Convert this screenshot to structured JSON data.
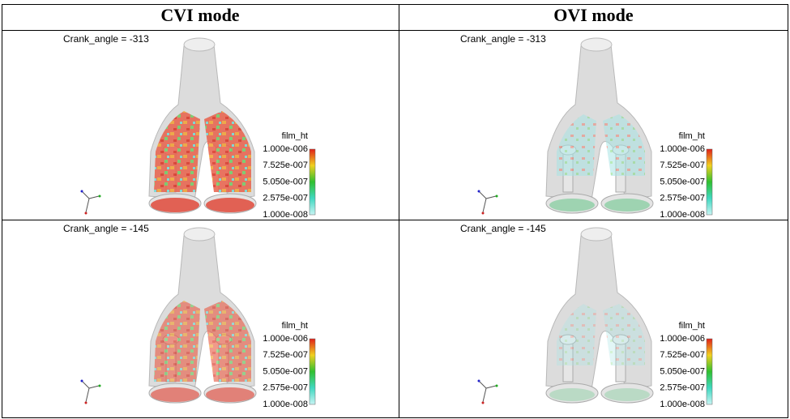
{
  "table": {
    "headers": [
      "CVI mode",
      "OVI mode"
    ],
    "rows": [
      [
        {
          "label": "Crank_angle = -313",
          "legend": {
            "title": "film_ht",
            "ticks": [
              "1.000e-006",
              "7.525e-007",
              "5.050e-007",
              "2.575e-007",
              "1.000e-008"
            ]
          }
        },
        {
          "label": "Crank_angle = -313",
          "legend": {
            "title": "film_ht",
            "ticks": [
              "1.000e-006",
              "7.525e-007",
              "5.050e-007",
              "2.575e-007",
              "1.000e-008"
            ]
          }
        }
      ],
      [
        {
          "label": "Crank_angle = -145",
          "legend": {
            "title": "film_ht",
            "ticks": [
              "1.000e-006",
              "7.525e-007",
              "5.050e-007",
              "2.575e-007",
              "1.000e-008"
            ]
          }
        },
        {
          "label": "Crank_angle = -145",
          "legend": {
            "title": "film_ht",
            "ticks": [
              "1.000e-006",
              "7.525e-007",
              "5.050e-007",
              "2.575e-007",
              "1.000e-008"
            ]
          }
        }
      ]
    ]
  }
}
